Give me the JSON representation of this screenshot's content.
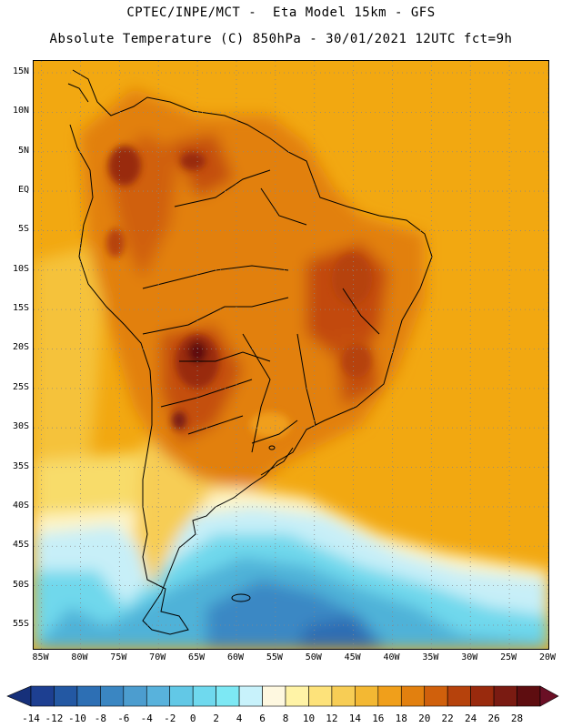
{
  "header": {
    "line1": "CPTEC/INPE/MCT -  Eta Model 15km - GFS",
    "line2": "Absolute Temperature (C) 850hPa - 30/01/2021 12UTC fct=9h"
  },
  "map": {
    "lat_labels": [
      "15N",
      "10N",
      "5N",
      "EQ",
      "5S",
      "10S",
      "15S",
      "20S",
      "25S",
      "30S",
      "35S",
      "40S",
      "45S",
      "50S",
      "55S"
    ],
    "lon_labels": [
      "85W",
      "80W",
      "75W",
      "70W",
      "65W",
      "60W",
      "55W",
      "50W",
      "45W",
      "40W",
      "35W",
      "30W",
      "25W",
      "20W"
    ],
    "extent": {
      "lon_min": -86,
      "lon_max": -20,
      "lat_min": -58,
      "lat_max": 16.5
    },
    "grid": "dotted, every 5 degrees"
  },
  "colorbar": {
    "labels": [
      "-14",
      "-12",
      "-10",
      "-8",
      "-6",
      "-4",
      "-2",
      "0",
      "2",
      "4",
      "6",
      "8",
      "10",
      "12",
      "14",
      "16",
      "18",
      "20",
      "22",
      "24",
      "26",
      "28"
    ],
    "colors": [
      "#1d3f91",
      "#2358a3",
      "#2d6fb4",
      "#3a86c2",
      "#4c9dcf",
      "#58b2dc",
      "#62c8e6",
      "#6fd9ee",
      "#7de8f4",
      "#c8f2fb",
      "#fef8e0",
      "#fff3a6",
      "#fde27a",
      "#f7cd55",
      "#f3b833",
      "#f09f1b",
      "#e2800f",
      "#d0600c",
      "#b6420c",
      "#992a0d",
      "#7a1b12",
      "#5e0d10"
    ],
    "over_color": "#6a0f25",
    "under_color": "#16307a"
  }
}
